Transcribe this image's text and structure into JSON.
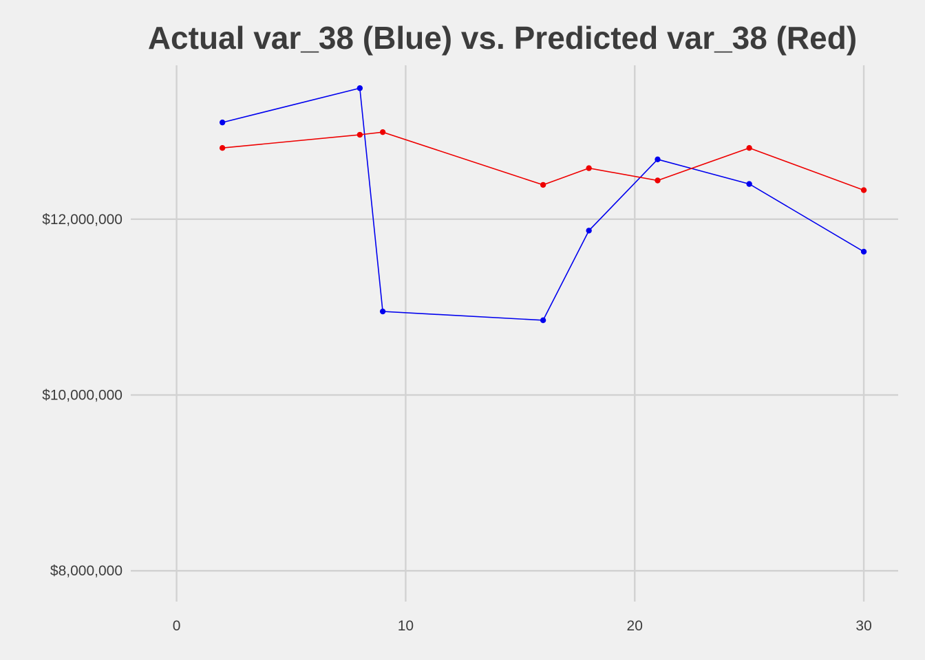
{
  "chart_data": {
    "type": "line",
    "title": "Actual var_38 (Blue) vs. Predicted var_38 (Red)",
    "xlabel": "",
    "ylabel": "",
    "xlim": [
      -2,
      31.5
    ],
    "ylim": [
      7650000,
      13750000
    ],
    "x_ticks": [
      0,
      10,
      20,
      30
    ],
    "x_tick_labels": [
      "0",
      "10",
      "20",
      "30"
    ],
    "y_ticks": [
      8000000,
      10000000,
      12000000
    ],
    "y_tick_labels": [
      "$8,000,000",
      "$10,000,000",
      "$12,000,000"
    ],
    "grid": true,
    "legend": "none",
    "series": [
      {
        "color": "#0000ee",
        "x": [
          2,
          8,
          9,
          16,
          18,
          21,
          25,
          30
        ],
        "y": [
          13100000,
          13490000,
          10950000,
          10850000,
          11870000,
          12680000,
          12400000,
          11630000
        ]
      },
      {
        "color": "#ee0000",
        "x": [
          2,
          8,
          9,
          16,
          18,
          21,
          25,
          30
        ],
        "y": [
          12810000,
          12960000,
          12990000,
          12390000,
          12580000,
          12440000,
          12810000,
          12330000
        ]
      }
    ]
  }
}
